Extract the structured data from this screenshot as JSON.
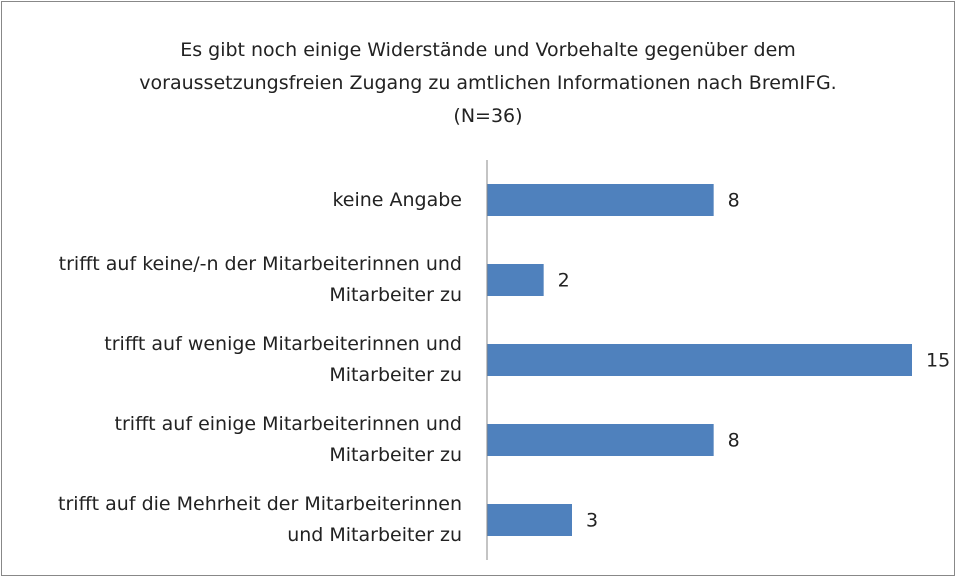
{
  "chart_data": {
    "type": "bar",
    "orientation": "horizontal",
    "title": "Es gibt noch einige Widerstände und Vorbehalte gegenüber dem voraussetzungsfreien Zugang zu amtlichen Informationen nach BremIFG. (N=36)",
    "categories": [
      "keine Angabe",
      "trifft auf keine/-n der Mitarbeiterinnen und Mitarbeiter zu",
      "trifft auf wenige Mitarbeiterinnen und Mitarbeiter zu",
      "trifft auf einige Mitarbeiterinnen und Mitarbeiter zu",
      "trifft auf die Mehrheit der Mitarbeiterinnen und Mitarbeiter zu"
    ],
    "values": [
      8,
      2,
      15,
      8,
      3
    ],
    "color": "#4f81bd"
  }
}
